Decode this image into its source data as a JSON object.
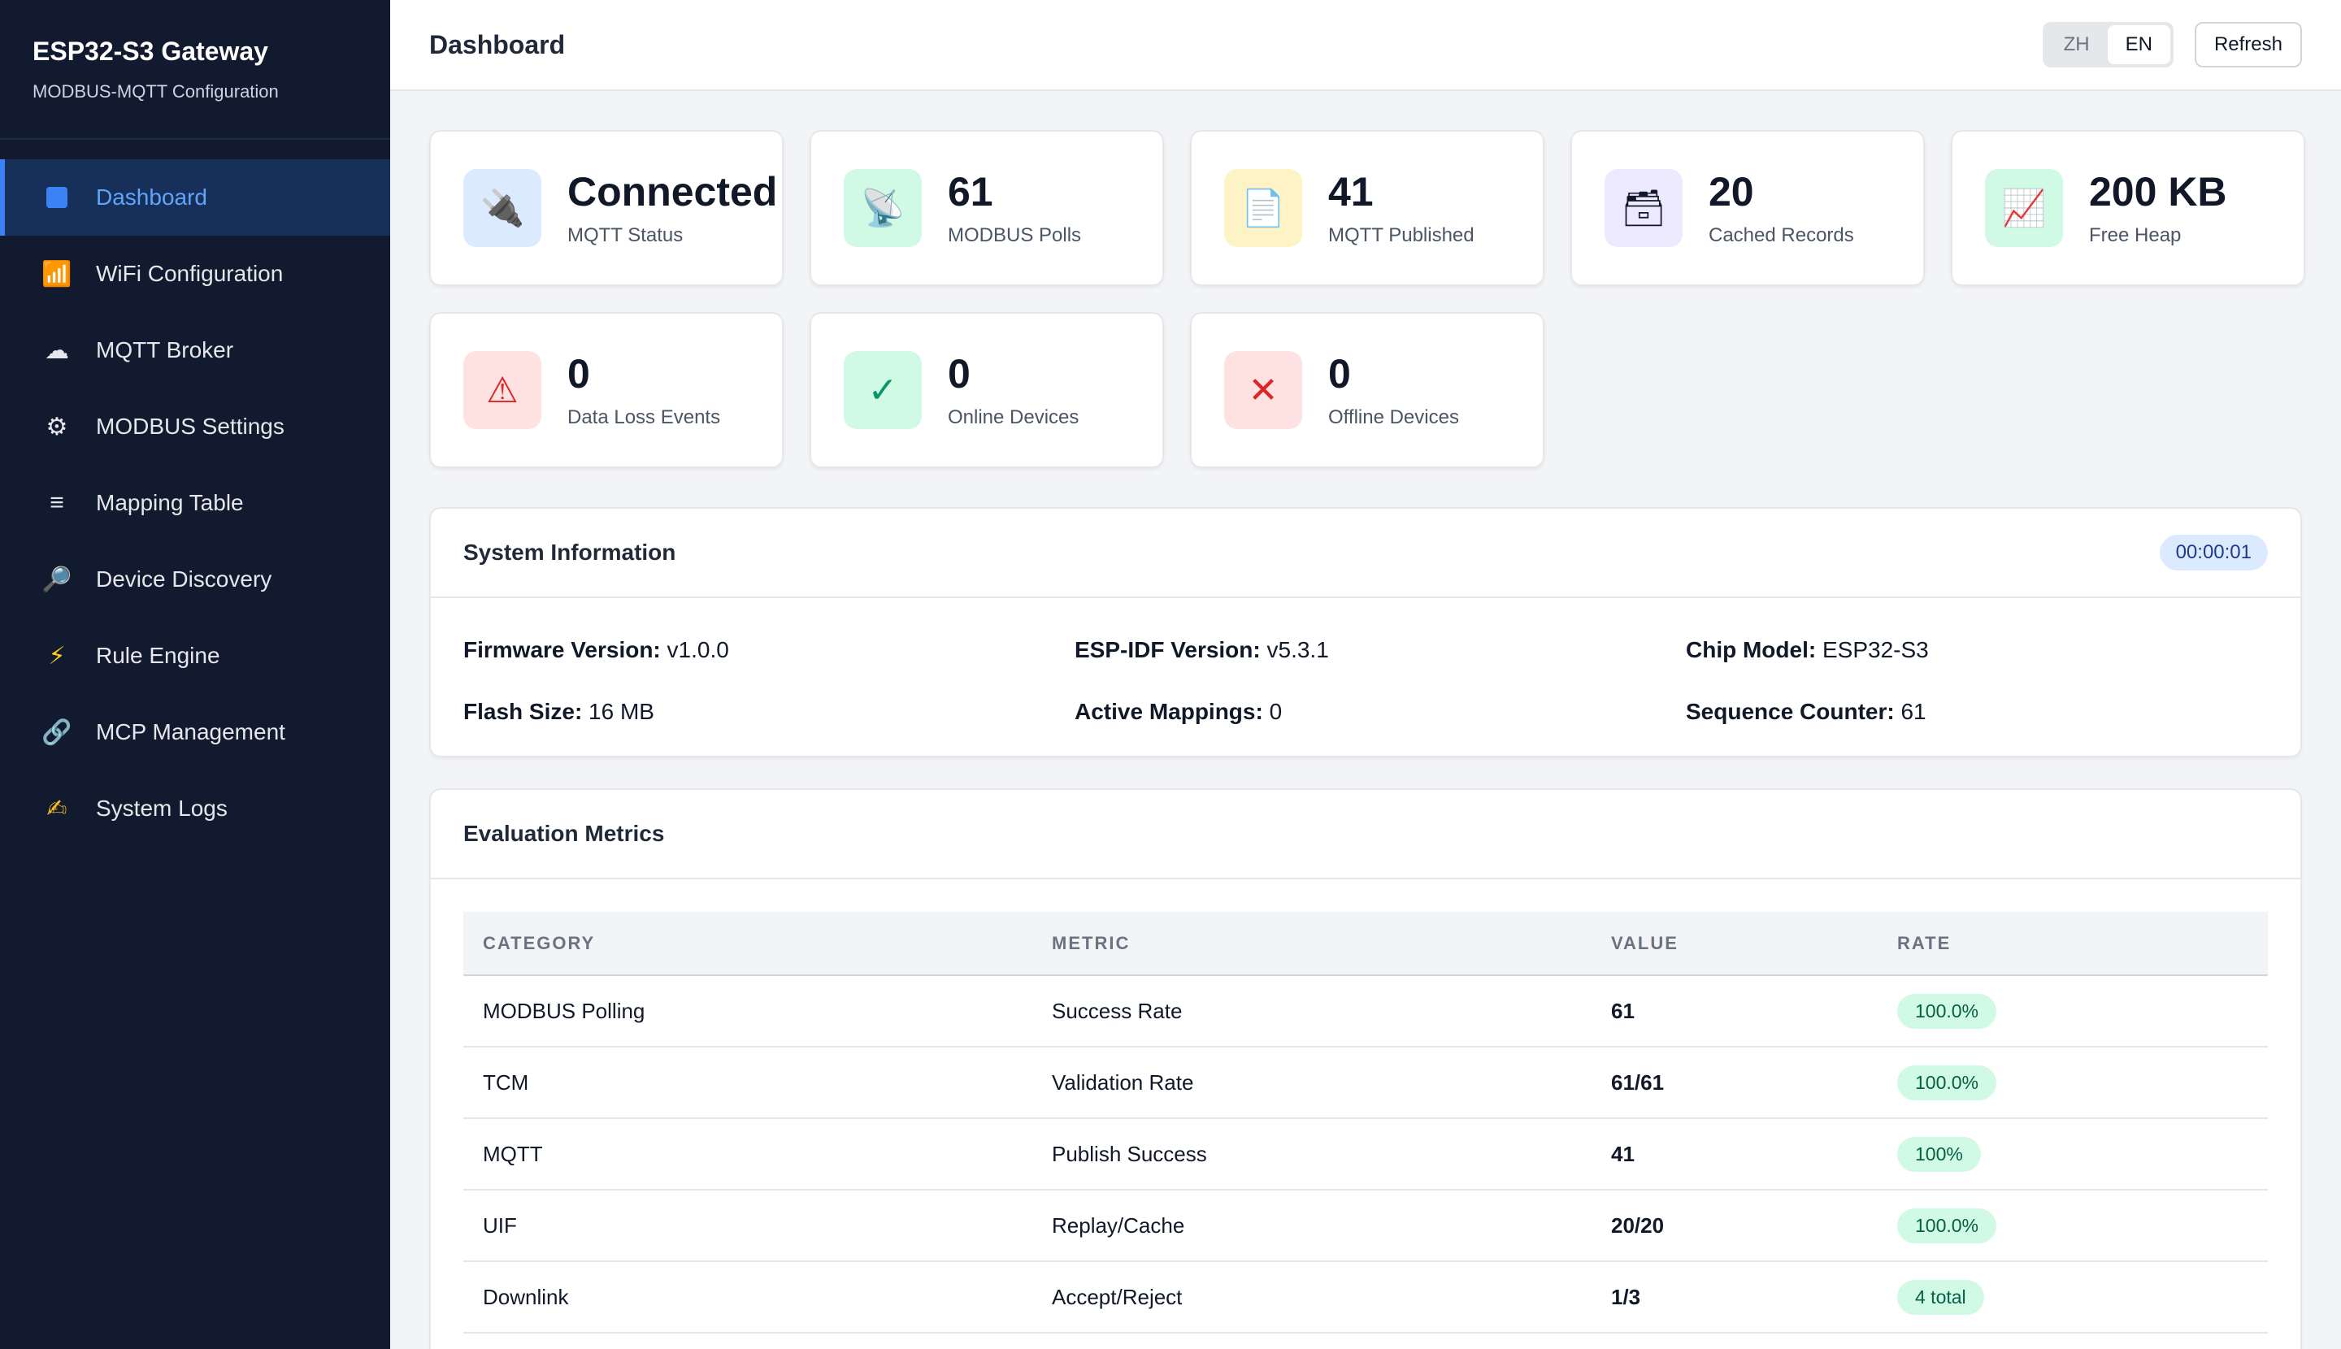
{
  "brand": {
    "title": "ESP32-S3 Gateway",
    "subtitle": "MODBUS-MQTT Configuration"
  },
  "sidebar": {
    "items": [
      {
        "label": "Dashboard",
        "icon": "square-icon",
        "active": true
      },
      {
        "label": "WiFi Configuration",
        "icon": "📶"
      },
      {
        "label": "MQTT Broker",
        "icon": "☁"
      },
      {
        "label": "MODBUS Settings",
        "icon": "⚙"
      },
      {
        "label": "Mapping Table",
        "icon": "≡"
      },
      {
        "label": "Device Discovery",
        "icon": "🔎"
      },
      {
        "label": "Rule Engine",
        "icon": "⚡"
      },
      {
        "label": "MCP Management",
        "icon": "🔗"
      },
      {
        "label": "System Logs",
        "icon": "✍"
      }
    ]
  },
  "header": {
    "title": "Dashboard",
    "lang_zh": "ZH",
    "lang_en": "EN",
    "refresh_label": "Refresh"
  },
  "stats": [
    {
      "value": "Connected",
      "label": "MQTT Status",
      "icon": "🔌",
      "bg": "#dbeafe"
    },
    {
      "value": "61",
      "label": "MODBUS Polls",
      "icon": "📡",
      "bg": "#d1fae5"
    },
    {
      "value": "41",
      "label": "MQTT Published",
      "icon": "📄",
      "bg": "#fef3c7"
    },
    {
      "value": "20",
      "label": "Cached Records",
      "icon": "🗃",
      "bg": "#ede9fe"
    },
    {
      "value": "200 KB",
      "label": "Free Heap",
      "icon": "📈",
      "bg": "#d1fae5"
    },
    {
      "value": "0",
      "label": "Data Loss Events",
      "icon": "⚠",
      "bg": "#fee2e2",
      "color": "#dc2626"
    },
    {
      "value": "0",
      "label": "Online Devices",
      "icon": "✓",
      "bg": "#d1fae5",
      "color": "#059669"
    },
    {
      "value": "0",
      "label": "Offline Devices",
      "icon": "✕",
      "bg": "#fee2e2",
      "color": "#dc2626"
    }
  ],
  "system_info": {
    "title": "System Information",
    "uptime": "00:00:01",
    "fields": [
      {
        "key": "Firmware Version:",
        "value": "v1.0.0"
      },
      {
        "key": "ESP-IDF Version:",
        "value": "v5.3.1"
      },
      {
        "key": "Chip Model:",
        "value": "ESP32-S3"
      },
      {
        "key": "Flash Size:",
        "value": "16 MB"
      },
      {
        "key": "Active Mappings:",
        "value": "0"
      },
      {
        "key": "Sequence Counter:",
        "value": "61"
      }
    ]
  },
  "metrics": {
    "title": "Evaluation Metrics",
    "columns": [
      "CATEGORY",
      "METRIC",
      "VALUE",
      "RATE"
    ],
    "rows": [
      {
        "category": "MODBUS Polling",
        "metric": "Success Rate",
        "value": "61",
        "rate": "100.0%"
      },
      {
        "category": "TCM",
        "metric": "Validation Rate",
        "value": "61/61",
        "rate": "100.0%"
      },
      {
        "category": "MQTT",
        "metric": "Publish Success",
        "value": "41",
        "rate": "100%"
      },
      {
        "category": "UIF",
        "metric": "Replay/Cache",
        "value": "20/20",
        "rate": "100.0%"
      },
      {
        "category": "Downlink",
        "metric": "Accept/Reject",
        "value": "1/3",
        "rate": "4 total"
      }
    ]
  }
}
